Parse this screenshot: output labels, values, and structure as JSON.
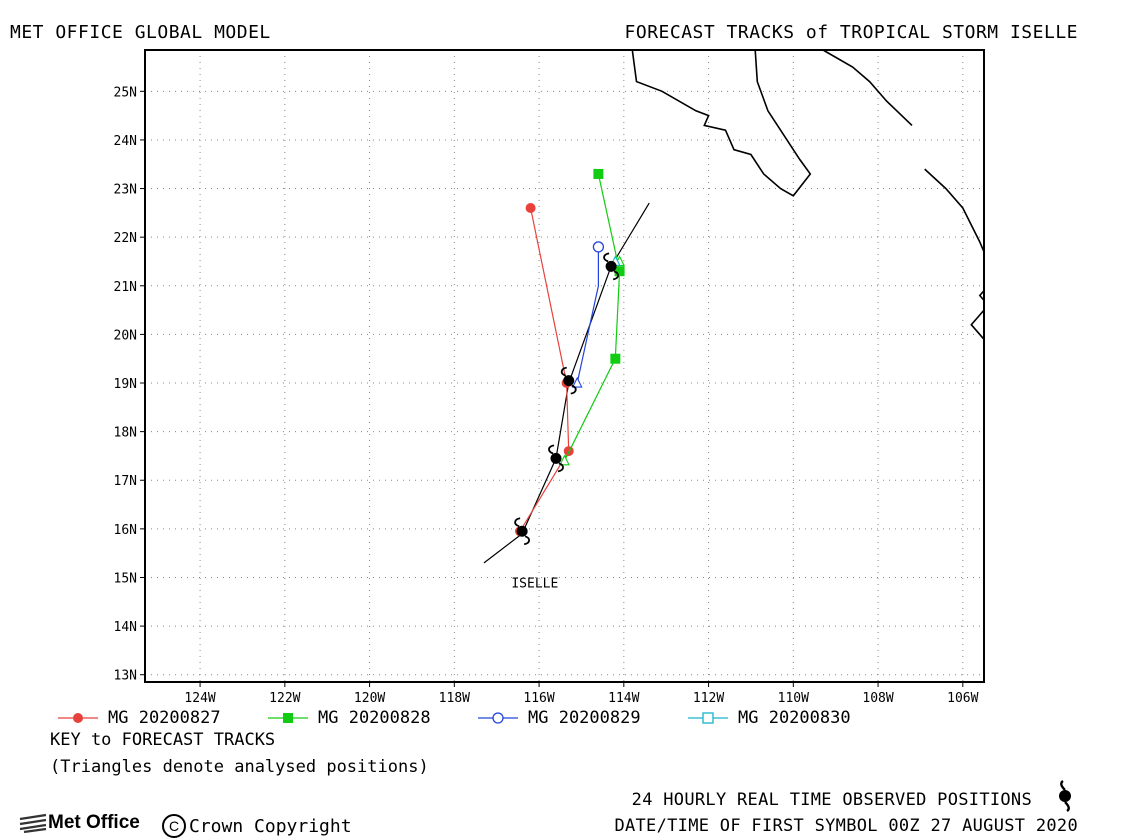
{
  "header": {
    "left_title": "MET OFFICE GLOBAL MODEL",
    "right_title": "FORECAST TRACKS of TROPICAL STORM ISELLE"
  },
  "map": {
    "lon_range": [
      -125.3,
      -105.5
    ],
    "lat_range": [
      12.85,
      25.85
    ],
    "lon_ticks": [
      -124,
      -122,
      -120,
      -118,
      -116,
      -114,
      -112,
      -110,
      -108,
      -106
    ],
    "lon_tick_labels": [
      "124W",
      "122W",
      "120W",
      "118W",
      "116W",
      "114W",
      "112W",
      "110W",
      "108W",
      "106W"
    ],
    "lat_ticks": [
      13,
      14,
      15,
      16,
      17,
      18,
      19,
      20,
      21,
      22,
      23,
      24,
      25
    ],
    "lat_tick_labels": [
      "13N",
      "14N",
      "15N",
      "16N",
      "17N",
      "18N",
      "19N",
      "20N",
      "21N",
      "22N",
      "23N",
      "24N",
      "25N"
    ],
    "grid": "dotted",
    "storm_label": "ISELLE",
    "storm_label_position": [
      -116.1,
      14.9
    ],
    "coastlines": [
      [
        [
          -113.8,
          25.85
        ],
        [
          -113.7,
          25.2
        ],
        [
          -113.1,
          25.0
        ],
        [
          -112.3,
          24.6
        ],
        [
          -112.0,
          24.5
        ],
        [
          -112.1,
          24.3
        ],
        [
          -111.6,
          24.2
        ],
        [
          -111.4,
          23.8
        ],
        [
          -111.0,
          23.7
        ],
        [
          -110.7,
          23.3
        ],
        [
          -110.3,
          23.0
        ],
        [
          -110.0,
          22.85
        ],
        [
          -109.6,
          23.3
        ],
        [
          -109.85,
          23.6
        ],
        [
          -110.3,
          24.2
        ],
        [
          -110.6,
          24.6
        ],
        [
          -110.85,
          25.2
        ],
        [
          -110.9,
          25.85
        ]
      ],
      [
        [
          -109.3,
          25.85
        ],
        [
          -108.6,
          25.5
        ],
        [
          -108.2,
          25.2
        ],
        [
          -107.8,
          24.8
        ],
        [
          -107.2,
          24.3
        ]
      ],
      [
        [
          -106.9,
          23.4
        ],
        [
          -106.4,
          23.0
        ],
        [
          -106.0,
          22.6
        ],
        [
          -105.6,
          21.9
        ],
        [
          -105.5,
          21.7
        ]
      ],
      [
        [
          -105.5,
          20.9
        ],
        [
          -105.6,
          20.8
        ],
        [
          -105.5,
          20.7
        ]
      ],
      [
        [
          -105.5,
          19.9
        ],
        [
          -105.8,
          20.2
        ],
        [
          -105.5,
          20.5
        ]
      ]
    ]
  },
  "analysed_track": {
    "points": [
      [
        -116.4,
        15.9
      ],
      [
        -115.6,
        17.45
      ],
      [
        -115.3,
        19.0
      ],
      [
        -114.3,
        21.4
      ]
    ],
    "extension_start": [
      -117.3,
      15.3
    ],
    "extension_end": [
      -113.4,
      22.7
    ]
  },
  "observed_symbols": [
    [
      -116.4,
      15.95
    ],
    [
      -115.6,
      17.45
    ],
    [
      -115.3,
      19.05
    ],
    [
      -114.3,
      21.4
    ]
  ],
  "forecast_tracks": [
    {
      "name": "MG 20200827",
      "color": "#e8413c",
      "marker": "filled-circle",
      "points": [
        [
          -116.45,
          15.95
        ],
        [
          -115.3,
          17.6
        ],
        [
          -115.35,
          19.0
        ],
        [
          -116.2,
          22.6
        ]
      ],
      "triangles": []
    },
    {
      "name": "MG 20200828",
      "color": "#11cc11",
      "marker": "filled-square",
      "points": [
        [
          -115.4,
          17.4
        ],
        [
          -114.2,
          19.5
        ],
        [
          -114.1,
          21.3
        ],
        [
          -114.6,
          23.3
        ]
      ],
      "triangles": [
        [
          -115.4,
          17.4
        ],
        [
          -114.1,
          21.5
        ]
      ]
    },
    {
      "name": "MG 20200829",
      "color": "#2244dd",
      "marker": "open-circle",
      "points": [
        [
          -115.1,
          19.0
        ],
        [
          -114.6,
          21.0
        ],
        [
          -114.6,
          21.8
        ]
      ],
      "triangles": [
        [
          -115.1,
          19.0
        ]
      ]
    },
    {
      "name": "MG 20200830",
      "color": "#18b4c8",
      "marker": "open-square",
      "points": [
        [
          -114.2,
          21.5
        ]
      ],
      "triangles": [
        [
          -114.2,
          21.5
        ]
      ]
    }
  ],
  "legend": {
    "key_title": "KEY to FORECAST TRACKS",
    "key_note": "(Triangles denote analysed positions)"
  },
  "footer": {
    "observed_label": "24 HOURLY REAL TIME OBSERVED POSITIONS",
    "datetime_label": "DATE/TIME OF FIRST SYMBOL 00Z 27 AUGUST 2020",
    "logo_text": "Met Office",
    "copyright_text": "Crown Copyright",
    "copyright_symbol": "C"
  }
}
